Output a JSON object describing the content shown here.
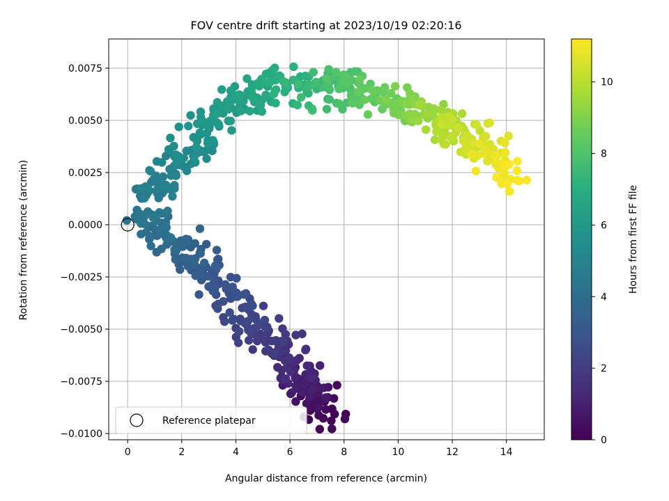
{
  "chart_data": {
    "type": "scatter",
    "title": "FOV centre drift starting at 2023/10/19 02:20:16",
    "xlabel": "Angular distance from reference (arcmin)",
    "ylabel": "Rotation from reference (arcmin)",
    "xlim": [
      -0.7,
      15.4
    ],
    "ylim": [
      -0.0103,
      0.0089
    ],
    "x_ticks": [
      0,
      2,
      4,
      6,
      8,
      10,
      12,
      14
    ],
    "x_tick_labels": [
      "0",
      "2",
      "4",
      "6",
      "8",
      "10",
      "12",
      "14"
    ],
    "y_ticks": [
      -0.01,
      -0.0075,
      -0.005,
      -0.0025,
      0,
      0.0025,
      0.005,
      0.0075
    ],
    "y_tick_labels": [
      "−0.0100",
      "−0.0075",
      "−0.0050",
      "−0.0025",
      "0.0000",
      "0.0025",
      "0.0050",
      "0.0075"
    ],
    "grid": true,
    "colormap": "viridis",
    "colorbar": {
      "label": "Hours from first FF file",
      "range": [
        0,
        11.2
      ],
      "ticks": [
        0,
        2,
        4,
        6,
        8,
        10
      ],
      "tick_labels": [
        "0",
        "2",
        "4",
        "6",
        "8",
        "10"
      ]
    },
    "legend": {
      "placement": "lower-left",
      "entries": [
        "Reference platepar"
      ]
    },
    "reference_point": {
      "x": 0,
      "y": 0
    },
    "path_anchors": [
      {
        "hours": 0.0,
        "x": 7.2,
        "y": -0.0093
      },
      {
        "hours": 0.3,
        "x": 7.0,
        "y": -0.0085
      },
      {
        "hours": 0.8,
        "x": 6.7,
        "y": -0.0076
      },
      {
        "hours": 1.3,
        "x": 6.2,
        "y": -0.0068
      },
      {
        "hours": 1.7,
        "x": 5.6,
        "y": -0.0057
      },
      {
        "hours": 2.1,
        "x": 4.8,
        "y": -0.0051
      },
      {
        "hours": 2.5,
        "x": 4.0,
        "y": -0.004
      },
      {
        "hours": 2.9,
        "x": 3.3,
        "y": -0.0028
      },
      {
        "hours": 3.3,
        "x": 2.6,
        "y": -0.0018
      },
      {
        "hours": 3.7,
        "x": 1.8,
        "y": -0.001
      },
      {
        "hours": 4.05,
        "x": 1.0,
        "y": -0.0003
      },
      {
        "hours": 4.3,
        "x": 0.6,
        "y": 0.0003
      },
      {
        "hours": 4.6,
        "x": 1.0,
        "y": 0.0015
      },
      {
        "hours": 5.0,
        "x": 1.6,
        "y": 0.0027
      },
      {
        "hours": 5.4,
        "x": 2.3,
        "y": 0.0037
      },
      {
        "hours": 5.8,
        "x": 3.0,
        "y": 0.0047
      },
      {
        "hours": 6.2,
        "x": 3.8,
        "y": 0.0058
      },
      {
        "hours": 6.6,
        "x": 4.8,
        "y": 0.0064
      },
      {
        "hours": 7.0,
        "x": 5.8,
        "y": 0.0066
      },
      {
        "hours": 7.4,
        "x": 6.8,
        "y": 0.0064
      },
      {
        "hours": 7.8,
        "x": 7.7,
        "y": 0.0065
      },
      {
        "hours": 8.2,
        "x": 8.3,
        "y": 0.0066
      },
      {
        "hours": 8.6,
        "x": 9.6,
        "y": 0.0061
      },
      {
        "hours": 9.0,
        "x": 10.5,
        "y": 0.0058
      },
      {
        "hours": 9.4,
        "x": 11.2,
        "y": 0.0051
      },
      {
        "hours": 9.8,
        "x": 11.9,
        "y": 0.0046
      },
      {
        "hours": 10.2,
        "x": 12.4,
        "y": 0.0044
      },
      {
        "hours": 10.6,
        "x": 13.1,
        "y": 0.0037
      },
      {
        "hours": 11.0,
        "x": 13.9,
        "y": 0.0028
      },
      {
        "hours": 11.2,
        "x": 14.4,
        "y": 0.0019
      }
    ]
  }
}
